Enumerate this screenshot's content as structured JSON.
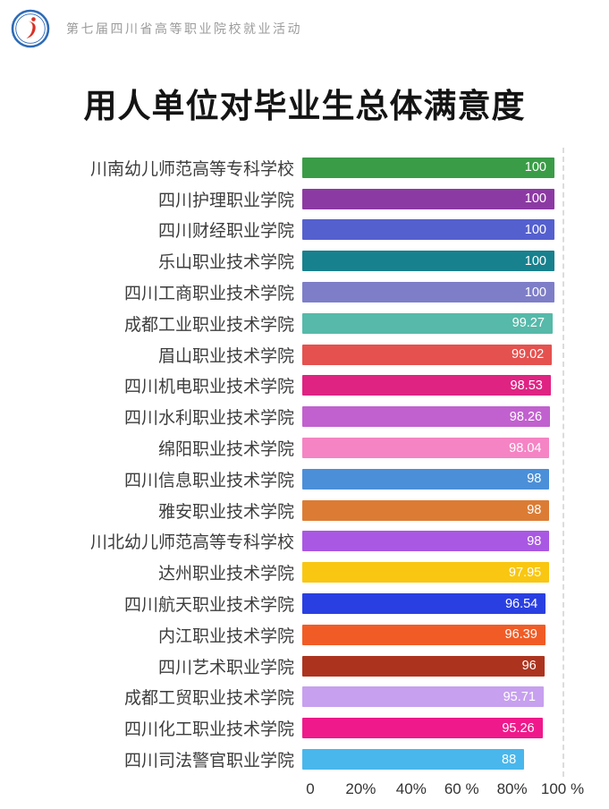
{
  "header": {
    "event_title": "第七届四川省高等职业院校就业活动",
    "logo": "school-employment-logo-icon",
    "logo_colors": {
      "ring": "#2e6bb7",
      "mark": "#d93025"
    }
  },
  "chart_data": {
    "type": "bar",
    "orientation": "horizontal",
    "title": "用人单位对毕业生总体满意度",
    "xlabel": "",
    "ylabel": "",
    "xlim": [
      0,
      100
    ],
    "x_tick_labels": [
      "0",
      "20%",
      "40%",
      "60 %",
      "80%",
      "100 %"
    ],
    "grid": "single dashed vertical line at 100%",
    "legend": "none",
    "categories": [
      "川南幼儿师范高等专科学校",
      "四川护理职业学院",
      "四川财经职业学院",
      "乐山职业技术学院",
      "四川工商职业技术学院",
      "成都工业职业技术学院",
      "眉山职业技术学院",
      "四川机电职业技术学院",
      "四川水利职业技术学院",
      "绵阳职业技术学院",
      "四川信息职业技术学院",
      "雅安职业技术学院",
      "川北幼儿师范高等专科学校",
      "达州职业技术学院",
      "四川航天职业技术学院",
      "内江职业技术学院",
      "四川艺术职业学院",
      "成都工贸职业技术学院",
      "四川化工职业技术学院",
      "四川司法警官职业学院"
    ],
    "values": [
      100,
      100,
      100,
      100,
      100,
      99.27,
      99.02,
      98.53,
      98.26,
      98.04,
      98,
      98,
      98,
      97.95,
      96.54,
      96.39,
      96,
      95.71,
      95.26,
      88
    ],
    "value_labels": [
      "100",
      "100",
      "100",
      "100",
      "100",
      "99.27",
      "99.02",
      "98.53",
      "98.26",
      "98.04",
      "98",
      "98",
      "98",
      "97.95",
      "96.54",
      "96.39",
      "96",
      "95.71",
      "95.26",
      "88"
    ],
    "bar_colors": [
      "#3b9c47",
      "#8c3aa3",
      "#5560cf",
      "#18818e",
      "#7e7ec8",
      "#56b9a9",
      "#e5514e",
      "#df2383",
      "#c161cf",
      "#f584c4",
      "#4b8fd9",
      "#dc7c34",
      "#a958e3",
      "#f9c712",
      "#2a3fe2",
      "#f15c26",
      "#ac341f",
      "#c7a0ef",
      "#ef198b",
      "#49b7ec"
    ]
  }
}
